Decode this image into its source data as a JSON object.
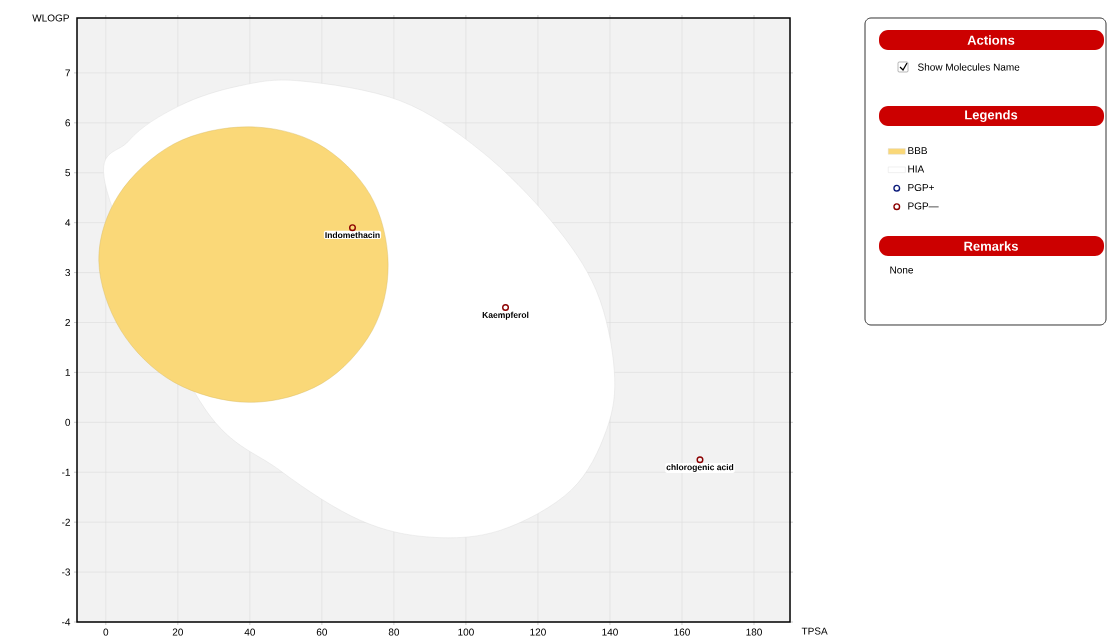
{
  "chart_data": {
    "type": "scatter",
    "xlabel": "TPSA",
    "ylabel": "WLOGP",
    "xlim": [
      -8,
      190
    ],
    "ylim": [
      -4,
      8.1
    ],
    "xticks": [
      0,
      20,
      40,
      60,
      80,
      100,
      120,
      140,
      160,
      180
    ],
    "yticks": [
      -4,
      -3,
      -2,
      -1,
      0,
      1,
      2,
      3,
      4,
      5,
      6,
      7
    ],
    "grid": true,
    "legend": "right",
    "series": [
      {
        "name": "BBB",
        "type": "area",
        "color": "#fad878",
        "x": [
          78.4,
          73.4,
          58.9,
          39.4,
          19.0,
          3.6,
          -1.95,
          4.2,
          19.0,
          39.9,
          60.0,
          74.0
        ],
        "values": [
          3.18,
          4.56,
          5.58,
          5.92,
          5.58,
          4.56,
          3.24,
          1.84,
          0.8,
          0.4,
          0.78,
          1.84
        ]
      },
      {
        "name": "HIA",
        "type": "area",
        "color": "#ffffff",
        "x": [
          53.9,
          81.8,
          104.1,
          123.6,
          136.2,
          141.2,
          139.0,
          129.2,
          109.7,
          90.1,
          70.6,
          48.3,
          26.0,
          0.3,
          6.4,
          20.4,
          37.1
        ],
        "values": [
          6.84,
          6.44,
          5.44,
          4.04,
          2.64,
          1.04,
          -0.16,
          -1.36,
          -2.16,
          -2.3,
          -1.96,
          -0.96,
          0.44,
          4.64,
          5.64,
          6.34,
          6.74
        ]
      },
      {
        "name": "PGP+",
        "color": "#0a1a7a",
        "marker": "circle"
      },
      {
        "name": "PGP—",
        "color": "#8b0000",
        "marker": "circle",
        "x": [
          68.5,
          111,
          165
        ],
        "values": [
          3.9,
          2.3,
          -0.75
        ]
      }
    ],
    "annotations": [
      {
        "text": "Indomethacin",
        "x": 68.5,
        "y": 3.9
      },
      {
        "text": "Kaempferol",
        "x": 111,
        "y": 2.3
      },
      {
        "text": "chlorogenic acid",
        "x": 165,
        "y": -0.75
      },
      "Actions",
      "Show Molecules Name",
      "Legends",
      "Remarks",
      "None"
    ]
  }
}
